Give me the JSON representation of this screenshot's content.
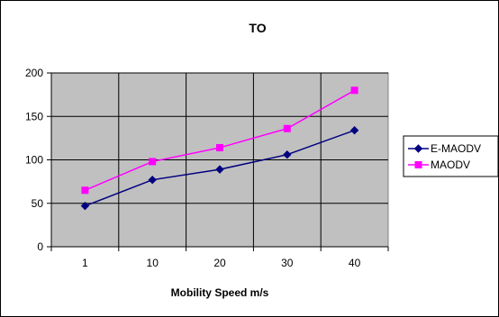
{
  "chart_data": {
    "type": "line",
    "title": "TO",
    "xlabel": "Mobility Speed m/s",
    "ylabel": "",
    "categories": [
      "1",
      "10",
      "20",
      "30",
      "40"
    ],
    "ylim": [
      0,
      200
    ],
    "yticks": [
      0,
      50,
      100,
      150,
      200
    ],
    "grid": true,
    "legend_position": "right",
    "plot_background": "#c0c0c0",
    "series": [
      {
        "name": "E-MAODV",
        "values": [
          47,
          77,
          89,
          106,
          134
        ],
        "color": "#000080",
        "marker": "diamond"
      },
      {
        "name": "MAODV",
        "values": [
          65,
          98,
          114,
          136,
          180
        ],
        "color": "#ff00ff",
        "marker": "square"
      }
    ]
  }
}
